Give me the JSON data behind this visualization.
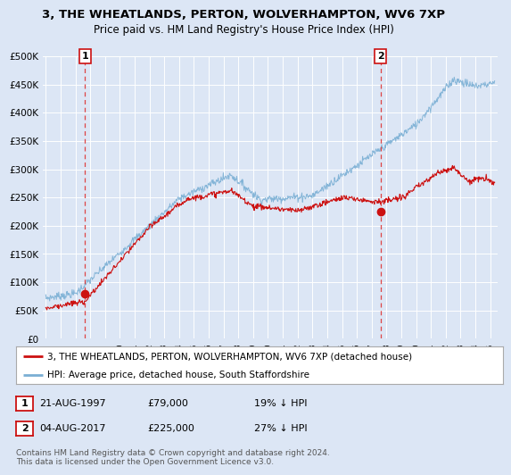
{
  "title": "3, THE WHEATLANDS, PERTON, WOLVERHAMPTON, WV6 7XP",
  "subtitle": "Price paid vs. HM Land Registry's House Price Index (HPI)",
  "bg_color": "#dce6f5",
  "plot_bg_color": "#dce6f5",
  "grid_color": "#ffffff",
  "hpi_color": "#7aafd4",
  "price_color": "#cc1111",
  "marker1_date_x": 1997.64,
  "marker1_price": 79000,
  "marker2_date_x": 2017.59,
  "marker2_price": 225000,
  "xmin": 1994.8,
  "xmax": 2025.5,
  "ymin": 0,
  "ymax": 500000,
  "yticks": [
    0,
    50000,
    100000,
    150000,
    200000,
    250000,
    300000,
    350000,
    400000,
    450000,
    500000
  ],
  "xticks": [
    1995,
    1996,
    1997,
    1998,
    1999,
    2000,
    2001,
    2002,
    2003,
    2004,
    2005,
    2006,
    2007,
    2008,
    2009,
    2010,
    2011,
    2012,
    2013,
    2014,
    2015,
    2016,
    2017,
    2018,
    2019,
    2020,
    2021,
    2022,
    2023,
    2024,
    2025
  ],
  "legend_entries": [
    {
      "label": "3, THE WHEATLANDS, PERTON, WOLVERHAMPTON, WV6 7XP (detached house)",
      "color": "#cc1111"
    },
    {
      "label": "HPI: Average price, detached house, South Staffordshire",
      "color": "#7aafd4"
    }
  ],
  "annotation1": {
    "num": "1",
    "date": "21-AUG-1997",
    "price": "£79,000",
    "pct": "19% ↓ HPI"
  },
  "annotation2": {
    "num": "2",
    "date": "04-AUG-2017",
    "price": "£225,000",
    "pct": "27% ↓ HPI"
  },
  "footnote": "Contains HM Land Registry data © Crown copyright and database right 2024.\nThis data is licensed under the Open Government Licence v3.0."
}
